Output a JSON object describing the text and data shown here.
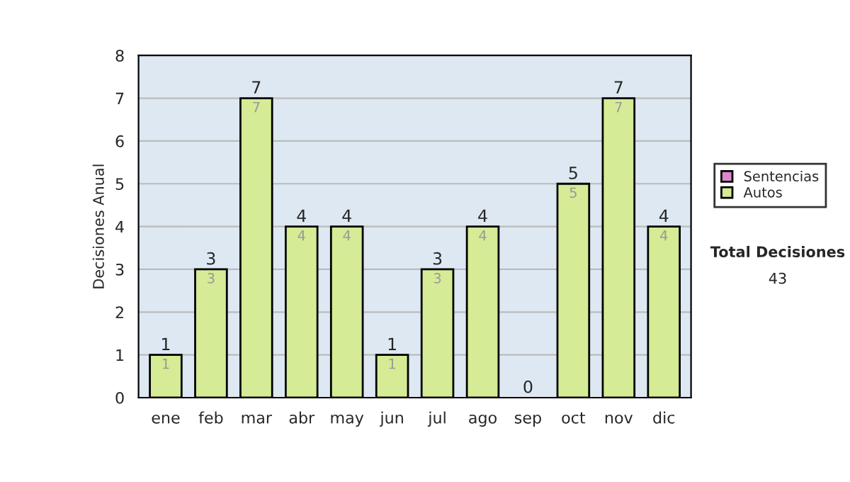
{
  "chart_data": {
    "type": "bar",
    "stacked": true,
    "ylabel": "Decisiones Anual",
    "categories": [
      "ene",
      "feb",
      "mar",
      "abr",
      "may",
      "jun",
      "jul",
      "ago",
      "sep",
      "oct",
      "nov",
      "dic"
    ],
    "series": [
      {
        "name": "Sentencias",
        "color": "#dd88cc",
        "values": [
          0,
          0,
          0,
          0,
          0,
          0,
          0,
          0,
          0,
          0,
          0,
          0
        ]
      },
      {
        "name": "Autos",
        "color": "#d5eb95",
        "values": [
          1,
          3,
          7,
          4,
          4,
          1,
          3,
          4,
          0,
          5,
          7,
          4
        ],
        "value_labels": [
          "1",
          "3",
          "7",
          "4",
          "4",
          "1",
          "3",
          "4",
          null,
          "5",
          "7",
          "4"
        ]
      }
    ],
    "totals": [
      "1",
      "3",
      "7",
      "4",
      "4",
      "1",
      "3",
      "4",
      "0",
      "5",
      "7",
      "4"
    ],
    "ylim": [
      0,
      8
    ],
    "yticks": [
      0,
      1,
      2,
      3,
      4,
      5,
      6,
      7,
      8
    ],
    "grid": "y",
    "legend": "right",
    "annotations": [
      "Total Decisiones",
      "43"
    ]
  }
}
